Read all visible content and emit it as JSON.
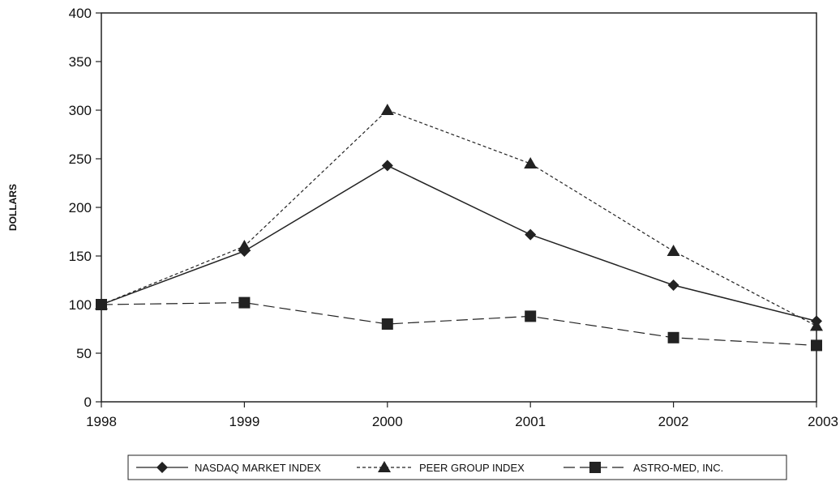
{
  "chart_data": {
    "type": "line",
    "title": "",
    "xlabel": "",
    "ylabel": "DOLLARS",
    "x": [
      "1998",
      "1999",
      "2000",
      "2001",
      "2002",
      "2003"
    ],
    "ylim": [
      0,
      400
    ],
    "yticks": [
      "0",
      "50",
      "100",
      "150",
      "200",
      "250",
      "300",
      "350",
      "400"
    ],
    "grid": false,
    "legend_position": "bottom",
    "series": [
      {
        "name": "NASDAQ MARKET INDEX",
        "values": [
          100,
          155,
          243,
          172,
          120,
          83
        ],
        "marker": "diamond",
        "line": "solid"
      },
      {
        "name": "PEER GROUP INDEX",
        "values": [
          100,
          160,
          300,
          245,
          155,
          78
        ],
        "marker": "triangle",
        "line": "dotted"
      },
      {
        "name": "ASTRO-MED, INC.",
        "values": [
          100,
          102,
          80,
          88,
          66,
          58
        ],
        "marker": "square",
        "line": "dashed"
      }
    ]
  }
}
